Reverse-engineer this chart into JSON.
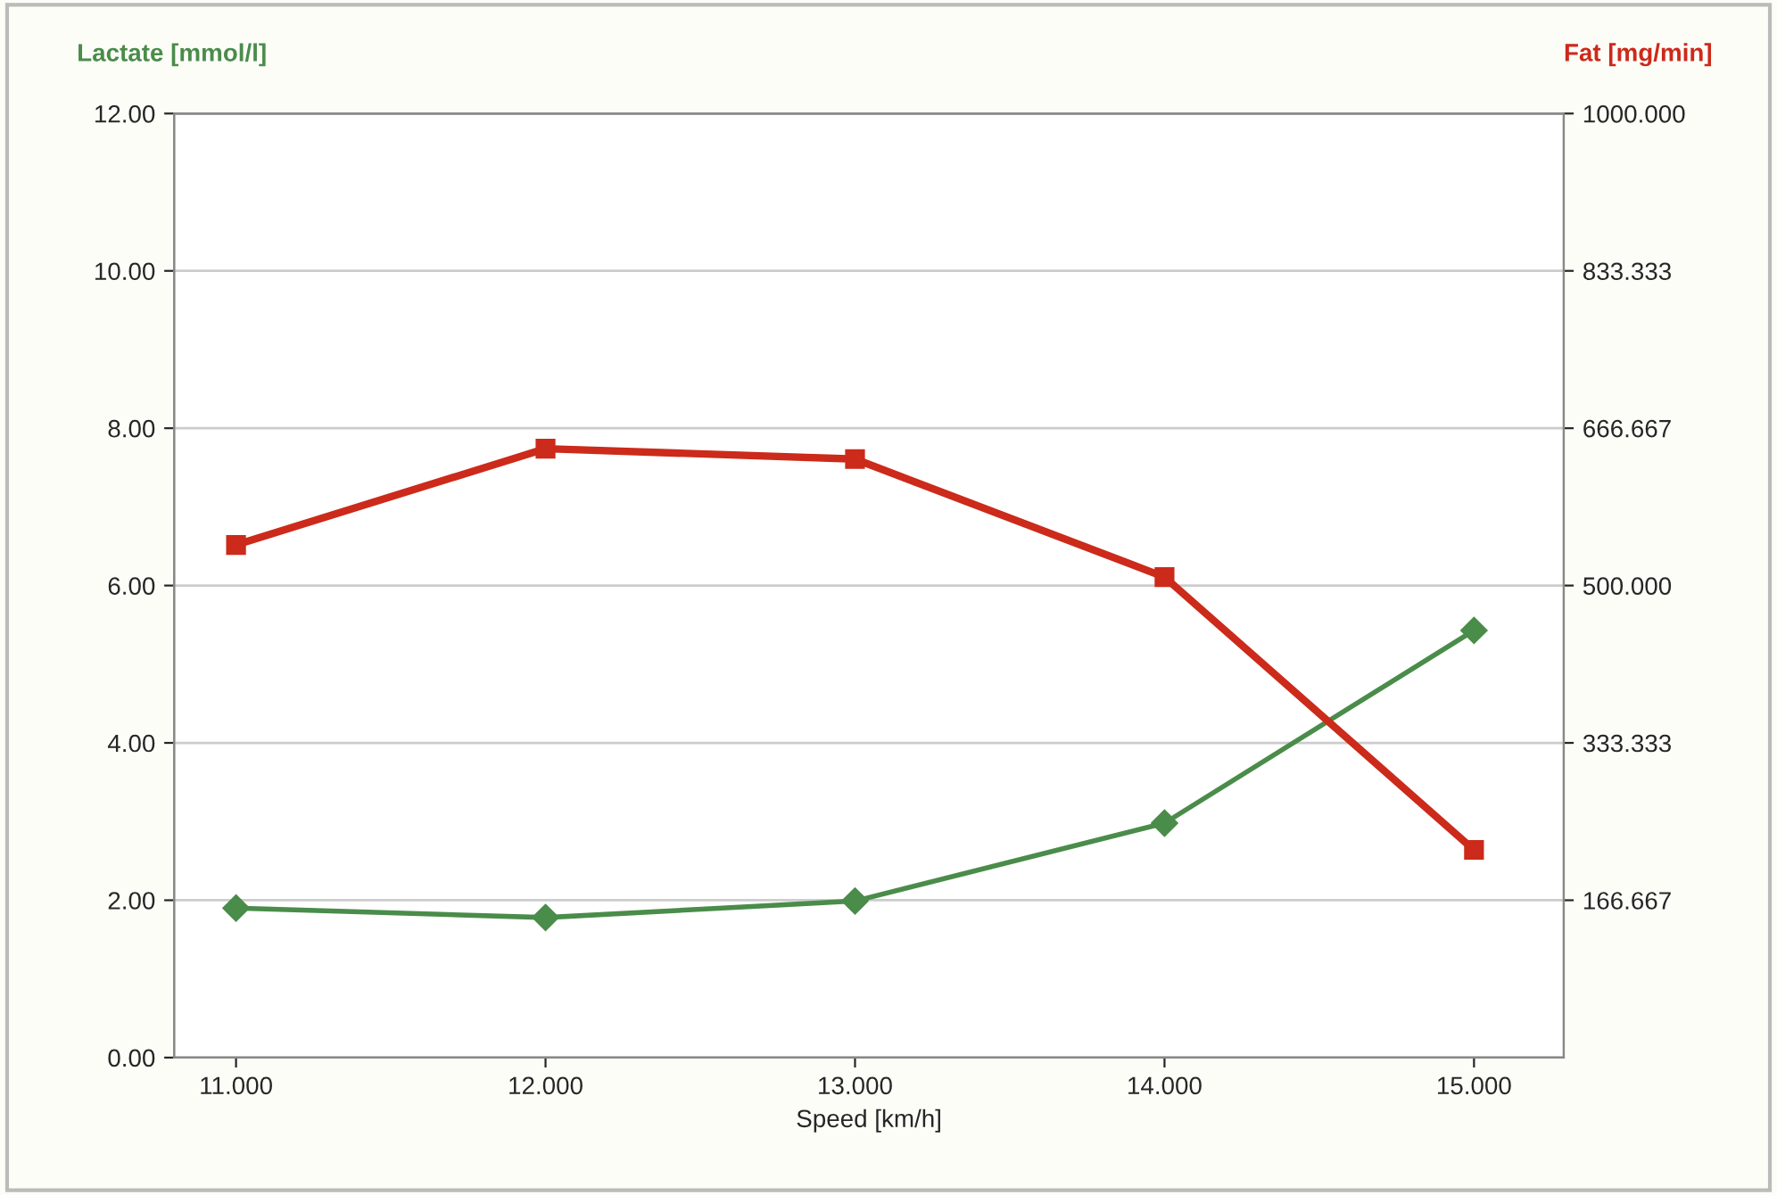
{
  "chart_data": {
    "type": "line",
    "xlabel": "Speed [km/h]",
    "ylabel": "Lactate [mmol/l]",
    "y2label": "Fat [mg/min]",
    "x": [
      11,
      12,
      13,
      14,
      15
    ],
    "series": [
      {
        "color": "#4a8c4a",
        "marker": "diamond",
        "values": [
          1.9,
          1.78,
          1.99,
          2.98,
          5.43
        ]
      },
      {
        "color": "#cc2a1a",
        "marker": "square",
        "axis": "y2",
        "values": [
          543,
          645,
          634,
          509,
          220
        ]
      }
    ],
    "xlim": [
      10.8,
      15.29
    ],
    "xticks": [
      {
        "value": 11,
        "label": "11.000"
      },
      {
        "value": 12,
        "label": "12.000"
      },
      {
        "value": 13,
        "label": "13.000"
      },
      {
        "value": 14,
        "label": "14.000"
      },
      {
        "value": 15,
        "label": "15.000"
      }
    ],
    "ylim": [
      0,
      12
    ],
    "yticks": [
      {
        "value": 0,
        "label": "0.00"
      },
      {
        "value": 2,
        "label": "2.00"
      },
      {
        "value": 4,
        "label": "4.00"
      },
      {
        "value": 6,
        "label": "6.00"
      },
      {
        "value": 8,
        "label": "8.00"
      },
      {
        "value": 10,
        "label": "10.00"
      },
      {
        "value": 12,
        "label": "12.00"
      }
    ],
    "y2lim": [
      0,
      1000
    ],
    "y2ticks": [
      {
        "value": 166.667,
        "label": "166.667"
      },
      {
        "value": 333.333,
        "label": "333.333"
      },
      {
        "value": 500,
        "label": "500.000"
      },
      {
        "value": 666.667,
        "label": "666.667"
      },
      {
        "value": 833.333,
        "label": "833.333"
      },
      {
        "value": 1000,
        "label": "1000.000"
      }
    ],
    "grid": "y",
    "line_style": "solid",
    "legend": false
  }
}
